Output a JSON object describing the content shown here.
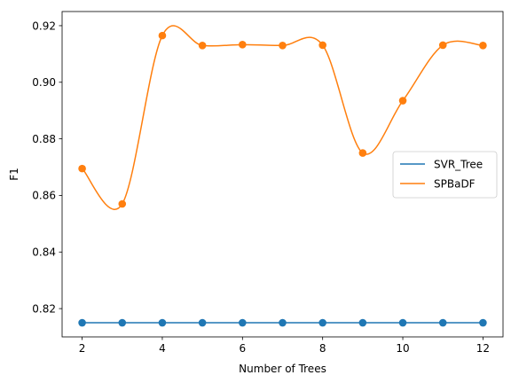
{
  "chart_data": {
    "type": "line",
    "title": "",
    "xlabel": "Number of Trees",
    "ylabel": "F1",
    "x": [
      2,
      3,
      4,
      5,
      6,
      7,
      8,
      9,
      10,
      11,
      12
    ],
    "xlim": [
      1.5,
      12.5
    ],
    "ylim": [
      0.81,
      0.925
    ],
    "xticks": [
      "2",
      "4",
      "6",
      "8",
      "10",
      "12"
    ],
    "yticks": [
      "0.82",
      "0.84",
      "0.86",
      "0.88",
      "0.90",
      "0.92"
    ],
    "grid": false,
    "legend_position": "center-right",
    "series": [
      {
        "name": "SVR_Tree",
        "color": "#1f77b4",
        "smooth": false,
        "values": [
          0.815,
          0.815,
          0.815,
          0.815,
          0.815,
          0.815,
          0.815,
          0.815,
          0.815,
          0.815,
          0.815
        ]
      },
      {
        "name": "SPBaDF",
        "color": "#ff7f0e",
        "smooth": true,
        "values": [
          0.8695,
          0.857,
          0.9165,
          0.913,
          0.9133,
          0.913,
          0.9131,
          0.875,
          0.8935,
          0.9131,
          0.913
        ]
      }
    ]
  }
}
